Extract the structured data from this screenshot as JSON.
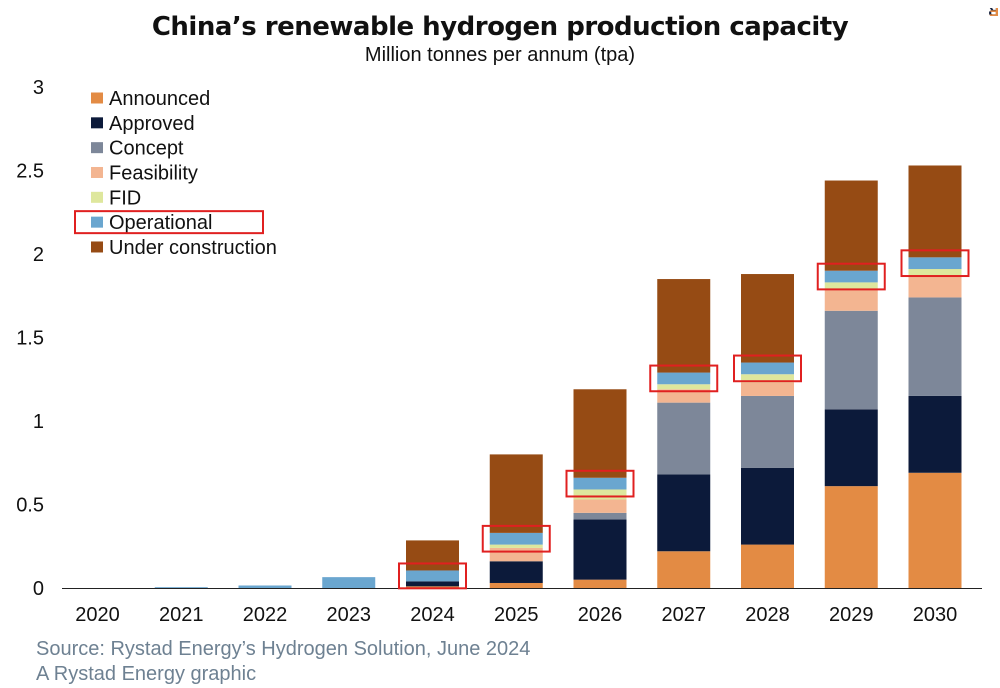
{
  "chart_data": {
    "type": "bar",
    "stacked": true,
    "title": "China’s renewable hydrogen production capacity",
    "subtitle": "Million tonnes per annum (tpa)",
    "ylim": [
      0,
      3
    ],
    "yticks": [
      {
        "value": 0,
        "label": "0"
      },
      {
        "value": 0.5,
        "label": "0.5"
      },
      {
        "value": 1,
        "label": "1"
      },
      {
        "value": 1.5,
        "label": "1.5"
      },
      {
        "value": 2,
        "label": "2"
      },
      {
        "value": 2.5,
        "label": "2.5"
      },
      {
        "value": 3,
        "label": "3"
      }
    ],
    "grid": false,
    "legend_position": "top-left",
    "categories": [
      "2020",
      "2021",
      "2022",
      "2023",
      "2024",
      "2025",
      "2026",
      "2027",
      "2028",
      "2029",
      "2030"
    ],
    "series": [
      {
        "name": "Announced",
        "color": "#E38B44",
        "values": [
          0,
          0,
          0,
          0,
          0.01,
          0.03,
          0.05,
          0.22,
          0.26,
          0.61,
          0.69
        ]
      },
      {
        "name": "Approved",
        "color": "#0C1A3A",
        "values": [
          0,
          0,
          0,
          0,
          0.03,
          0.13,
          0.36,
          0.46,
          0.46,
          0.46,
          0.46
        ]
      },
      {
        "name": "Concept",
        "color": "#7D8799",
        "values": [
          0,
          0,
          0,
          0,
          0,
          0,
          0.04,
          0.43,
          0.43,
          0.59,
          0.59
        ]
      },
      {
        "name": "Feasibility",
        "color": "#F3B591",
        "values": [
          0,
          0,
          0,
          0,
          0,
          0.08,
          0.08,
          0.08,
          0.08,
          0.13,
          0.13
        ]
      },
      {
        "name": "FID",
        "color": "#DEE79D",
        "values": [
          0,
          0,
          0,
          0,
          0,
          0.02,
          0.06,
          0.03,
          0.05,
          0.04,
          0.04
        ]
      },
      {
        "name": "Operational",
        "color": "#6AA6CF",
        "values": [
          0,
          0.005,
          0.015,
          0.065,
          0.065,
          0.07,
          0.07,
          0.07,
          0.07,
          0.07,
          0.07
        ]
      },
      {
        "name": "Under construction",
        "color": "#964B14",
        "values": [
          0,
          0,
          0,
          0,
          0.18,
          0.47,
          0.53,
          0.56,
          0.53,
          0.54,
          0.55
        ]
      }
    ],
    "highlight_boxes": {
      "color": "#E02020",
      "target": "Operational",
      "categories": [
        "2024",
        "2025",
        "2026",
        "2027",
        "2028",
        "2029",
        "2030"
      ],
      "legend_entry": "Operational"
    }
  },
  "footer": {
    "source": "Source: Rystad Energy’s Hydrogen Solution, June 2024",
    "credit": "A Rystad Energy graphic",
    "color": "#6E8192"
  },
  "brand": {
    "part1": "Rystad",
    "part2": "Energy",
    "color1": "#1A2440",
    "color2": "#E38B44"
  }
}
